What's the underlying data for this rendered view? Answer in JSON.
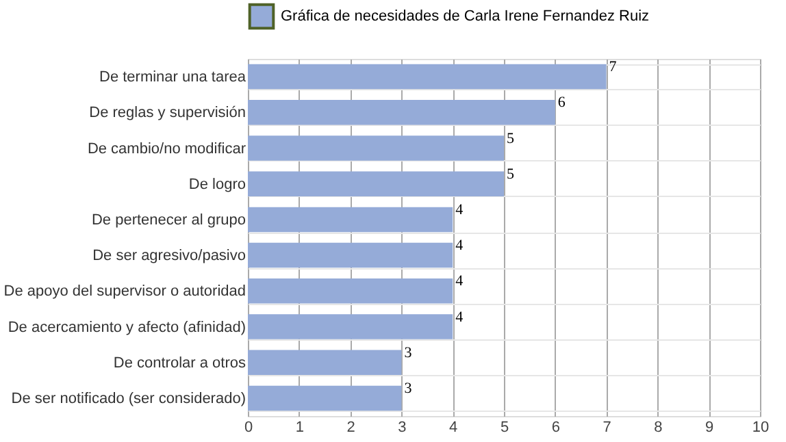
{
  "chart_data": {
    "type": "bar",
    "orientation": "horizontal",
    "categories": [
      "De terminar una tarea",
      "De reglas y supervisión",
      "De cambio/no modificar",
      "De logro",
      "De pertenecer al grupo",
      "De ser agresivo/pasivo",
      "De apoyo del supervisor o autoridad",
      "De acercamiento y afecto (afinidad)",
      "De controlar a otros",
      "De ser notificado (ser considerado)"
    ],
    "series": [
      {
        "name": "Gráfica de necesidades de Carla Irene Fernandez Ruiz",
        "color": "#95abd8",
        "values": [
          7,
          6,
          5,
          5,
          4,
          4,
          4,
          4,
          3,
          3
        ]
      }
    ],
    "xlim": [
      0,
      10
    ],
    "xticks": [
      0,
      1,
      2,
      3,
      4,
      5,
      6,
      7,
      8,
      9,
      10
    ],
    "grid": true,
    "legend": "top",
    "data_labels": true
  }
}
